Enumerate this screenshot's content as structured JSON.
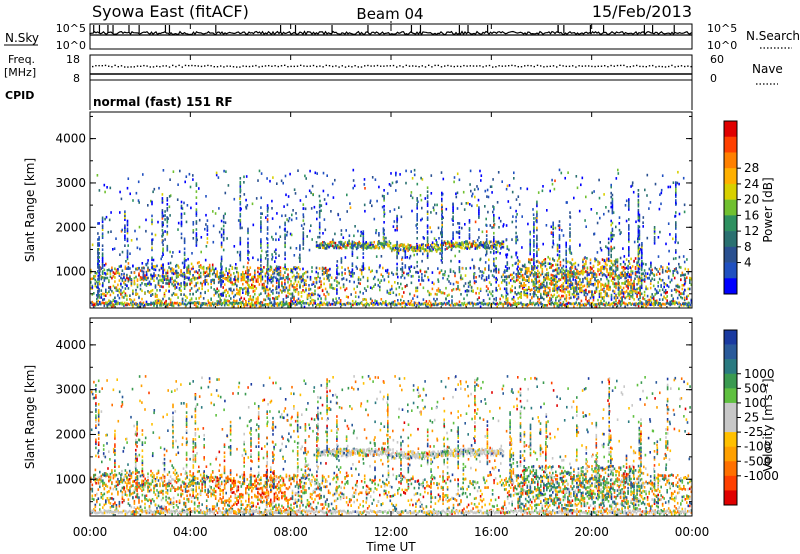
{
  "header": {
    "station": "Syowa East (fitACF)",
    "beam": "Beam 04",
    "date": "15/Feb/2013"
  },
  "panels": {
    "nsky": {
      "left_label": "N.Sky",
      "right_label": "N.Search",
      "left_ticks": [
        "10^5",
        "10^0"
      ],
      "right_ticks": [
        "10^5",
        "10^0"
      ]
    },
    "freq": {
      "left_label_line1": "Freq.",
      "left_label_line2": "[MHz]",
      "right_label": "Nave",
      "left_ticks": [
        "18",
        "8"
      ],
      "right_ticks": [
        "60",
        "0"
      ]
    },
    "cpid": {
      "label": "CPID",
      "mode": "normal (fast) 151 RF"
    }
  },
  "chart_data": [
    {
      "type": "heatmap",
      "name": "power",
      "ylabel": "Slant Range [km]",
      "yticks": [
        1000,
        2000,
        3000,
        4000
      ],
      "ylim": [
        180,
        4600
      ],
      "colorbar_label": "Power [dB]",
      "colorbar_ticks": [
        "28",
        "24",
        "20",
        "16",
        "12",
        "8",
        "4"
      ],
      "colorbar_colors": [
        "#e00000",
        "#ff4000",
        "#ff8000",
        "#ffb000",
        "#d8d000",
        "#70c030",
        "#2e9060",
        "#2a7070",
        "#2a5090",
        "#2050c0",
        "#0000ff"
      ]
    },
    {
      "type": "heatmap",
      "name": "velocity",
      "ylabel": "Slant Range [km]",
      "yticks": [
        1000,
        2000,
        3000,
        4000
      ],
      "ylim": [
        180,
        4600
      ],
      "colorbar_label": "Velocity [m s⁻¹]",
      "colorbar_ticks": [
        "1000",
        "500",
        "100",
        "25",
        "-25",
        "-100",
        "-500",
        "-1000"
      ],
      "colorbar_colors": [
        "#1a3aa0",
        "#2a5a9a",
        "#2a7a80",
        "#3a9a50",
        "#5fc040",
        "#c8c8c8",
        "#c8c8c8",
        "#ffc000",
        "#ffa000",
        "#ff7000",
        "#ff4000",
        "#e00000"
      ]
    }
  ],
  "xaxis": {
    "label": "Time UT",
    "ticks": [
      "00:00",
      "04:00",
      "08:00",
      "12:00",
      "16:00",
      "20:00",
      "00:00"
    ]
  }
}
